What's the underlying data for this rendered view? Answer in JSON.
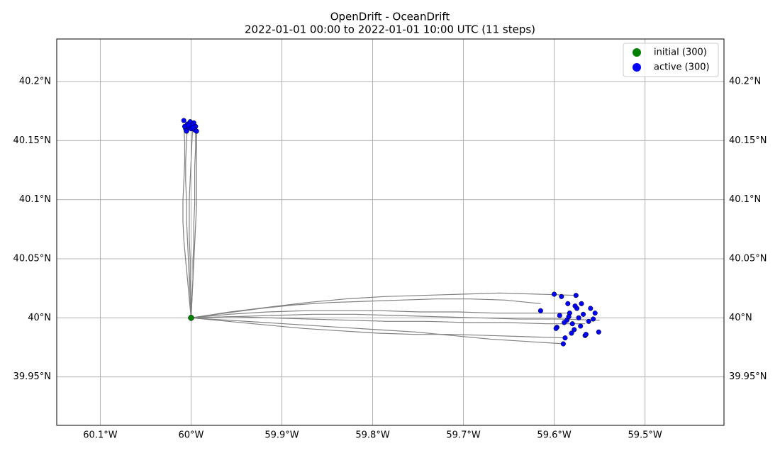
{
  "chart_data": {
    "type": "scatter",
    "title": "OpenDrift - OceanDrift",
    "subtitle": "2022-01-01 00:00 to 2022-01-01 10:00 UTC (11 steps)",
    "xlim": [
      -60.148,
      -59.413
    ],
    "ylim": [
      39.909,
      40.236
    ],
    "xticks": [
      {
        "value": -60.1,
        "label": "60.1°W"
      },
      {
        "value": -60.0,
        "label": "60°W"
      },
      {
        "value": -59.9,
        "label": "59.9°W"
      },
      {
        "value": -59.8,
        "label": "59.8°W"
      },
      {
        "value": -59.7,
        "label": "59.7°W"
      },
      {
        "value": -59.6,
        "label": "59.6°W"
      },
      {
        "value": -59.5,
        "label": "59.5°W"
      }
    ],
    "yticks": [
      {
        "value": 39.95,
        "label": "39.95°N"
      },
      {
        "value": 40.0,
        "label": "40°N"
      },
      {
        "value": 40.05,
        "label": "40.05°N"
      },
      {
        "value": 40.1,
        "label": "40.1°N"
      },
      {
        "value": 40.15,
        "label": "40.15°N"
      },
      {
        "value": 40.2,
        "label": "40.2°N"
      }
    ],
    "grid": true,
    "legend": "upper right",
    "trajectory_color": "#808080",
    "trajectories": [
      {
        "x": [
          -60,
          -59.999,
          -59.998,
          -59.998,
          -59.997,
          -59.997,
          -59.996,
          -59.996,
          -59.996,
          -59.995,
          -59.995
        ],
        "y": [
          40,
          40.016,
          40.032,
          40.048,
          40.064,
          40.08,
          40.096,
          40.112,
          40.128,
          40.144,
          40.159
        ]
      },
      {
        "x": [
          -60,
          -60.001,
          -60.002,
          -60.003,
          -60.004,
          -60.005,
          -60.005,
          -60.006,
          -60.006,
          -60.005,
          -60.004
        ],
        "y": [
          40,
          40.017,
          40.033,
          40.05,
          40.066,
          40.083,
          40.099,
          40.116,
          40.132,
          40.149,
          40.165
        ]
      },
      {
        "x": [
          -60,
          -60.002,
          -60.004,
          -60.006,
          -60.008,
          -60.009,
          -60.009,
          -60.008,
          -60.007,
          -60.007,
          -60.008
        ],
        "y": [
          40,
          40.016,
          40.033,
          40.049,
          40.066,
          40.082,
          40.099,
          40.115,
          40.132,
          40.148,
          40.164
        ]
      },
      {
        "x": [
          -60,
          -59.999,
          -59.998,
          -59.997,
          -59.996,
          -59.995,
          -59.994,
          -59.994,
          -59.994,
          -59.994,
          -59.994
        ],
        "y": [
          40,
          40.016,
          40.032,
          40.047,
          40.063,
          40.079,
          40.095,
          40.11,
          40.126,
          40.142,
          40.158
        ]
      },
      {
        "x": [
          -60,
          -60,
          -60.001,
          -60.001,
          -60.002,
          -60.002,
          -60.002,
          -60.001,
          -60,
          -59.999,
          -59.998
        ],
        "y": [
          40,
          40.017,
          40.033,
          40.05,
          40.067,
          40.083,
          40.1,
          40.117,
          40.133,
          40.15,
          40.166
        ]
      },
      {
        "x": [
          -60,
          -59.958,
          -59.916,
          -59.874,
          -59.832,
          -59.79,
          -59.748,
          -59.706,
          -59.664,
          -59.622,
          -59.58
        ],
        "y": [
          40,
          40.003,
          40.005,
          40.006,
          40.006,
          40.006,
          40.005,
          40.005,
          40.004,
          40.004,
          40.004
        ]
      },
      {
        "x": [
          -60,
          -59.957,
          -59.915,
          -59.872,
          -59.83,
          -59.787,
          -59.745,
          -59.702,
          -59.66,
          -59.617,
          -59.575
        ],
        "y": [
          40,
          40.005,
          40.009,
          40.013,
          40.016,
          40.018,
          40.019,
          40.02,
          40.021,
          40.02,
          40.019
        ]
      },
      {
        "x": [
          -60,
          -59.959,
          -59.918,
          -59.876,
          -59.835,
          -59.794,
          -59.753,
          -59.712,
          -59.67,
          -59.629,
          -59.588
        ],
        "y": [
          40,
          39.997,
          39.994,
          39.991,
          39.989,
          39.987,
          39.986,
          39.986,
          39.985,
          39.984,
          39.983
        ]
      },
      {
        "x": [
          -60,
          -59.955,
          -59.91,
          -59.865,
          -59.82,
          -59.775,
          -59.73,
          -59.685,
          -59.64,
          -59.595,
          -59.55
        ],
        "y": [
          40,
          40.001,
          40.002,
          40.003,
          40.003,
          40.002,
          40.001,
          40,
          39.999,
          39.999,
          39.998
        ]
      },
      {
        "x": [
          -60,
          -59.959,
          -59.918,
          -59.877,
          -59.836,
          -59.795,
          -59.753,
          -59.712,
          -59.671,
          -59.63,
          -59.589
        ],
        "y": [
          40,
          39.998,
          39.996,
          39.994,
          39.992,
          39.99,
          39.988,
          39.985,
          39.982,
          39.98,
          39.978
        ]
      },
      {
        "x": [
          -60,
          -59.962,
          -59.923,
          -59.885,
          -59.846,
          -59.808,
          -59.769,
          -59.731,
          -59.692,
          -59.654,
          -59.615
        ],
        "y": [
          40,
          40.004,
          40.008,
          40.011,
          40.013,
          40.014,
          40.015,
          40.016,
          40.016,
          40.015,
          40.012
        ]
      },
      {
        "x": [
          -60,
          -59.957,
          -59.913,
          -59.87,
          -59.826,
          -59.783,
          -59.74,
          -59.696,
          -59.653,
          -59.609,
          -59.566
        ],
        "y": [
          40,
          40.001,
          40,
          39.999,
          39.998,
          39.997,
          39.997,
          39.996,
          39.996,
          39.995,
          39.995
        ]
      }
    ],
    "series": [
      {
        "name": "initial (300)",
        "color": "#008000",
        "x": [
          -60.0
        ],
        "y": [
          40.0
        ]
      },
      {
        "name": "active (300)",
        "color": "#0000ff",
        "x": [
          -60.008,
          -60.004,
          -60.001,
          -59.997,
          -59.995,
          -60.006,
          -60.002,
          -59.999,
          -59.996,
          -60.005,
          -60.0,
          -59.994,
          -60.003,
          -59.998,
          -60.007,
          -59.6,
          -59.592,
          -59.576,
          -59.615,
          -59.585,
          -59.57,
          -59.56,
          -59.555,
          -59.551,
          -59.59,
          -59.597,
          -59.58,
          -59.566,
          -59.573,
          -59.588,
          -59.583,
          -59.578,
          -59.562,
          -59.571,
          -59.594,
          -59.586,
          -59.575,
          -59.568,
          -59.581,
          -59.589,
          -59.557,
          -59.598,
          -59.577,
          -59.565,
          -59.584
        ],
        "y": [
          40.167,
          40.164,
          40.166,
          40.165,
          40.162,
          40.16,
          40.161,
          40.163,
          40.159,
          40.158,
          40.16,
          40.158,
          40.163,
          40.161,
          40.162,
          40.02,
          40.018,
          40.019,
          40.006,
          40.012,
          40.012,
          40.008,
          40.004,
          39.988,
          39.978,
          39.992,
          39.995,
          39.985,
          40.0,
          39.983,
          40.004,
          39.99,
          39.997,
          39.993,
          40.002,
          39.998,
          40.008,
          40.003,
          39.987,
          39.996,
          39.999,
          39.991,
          40.01,
          39.986,
          40.001
        ]
      }
    ]
  }
}
